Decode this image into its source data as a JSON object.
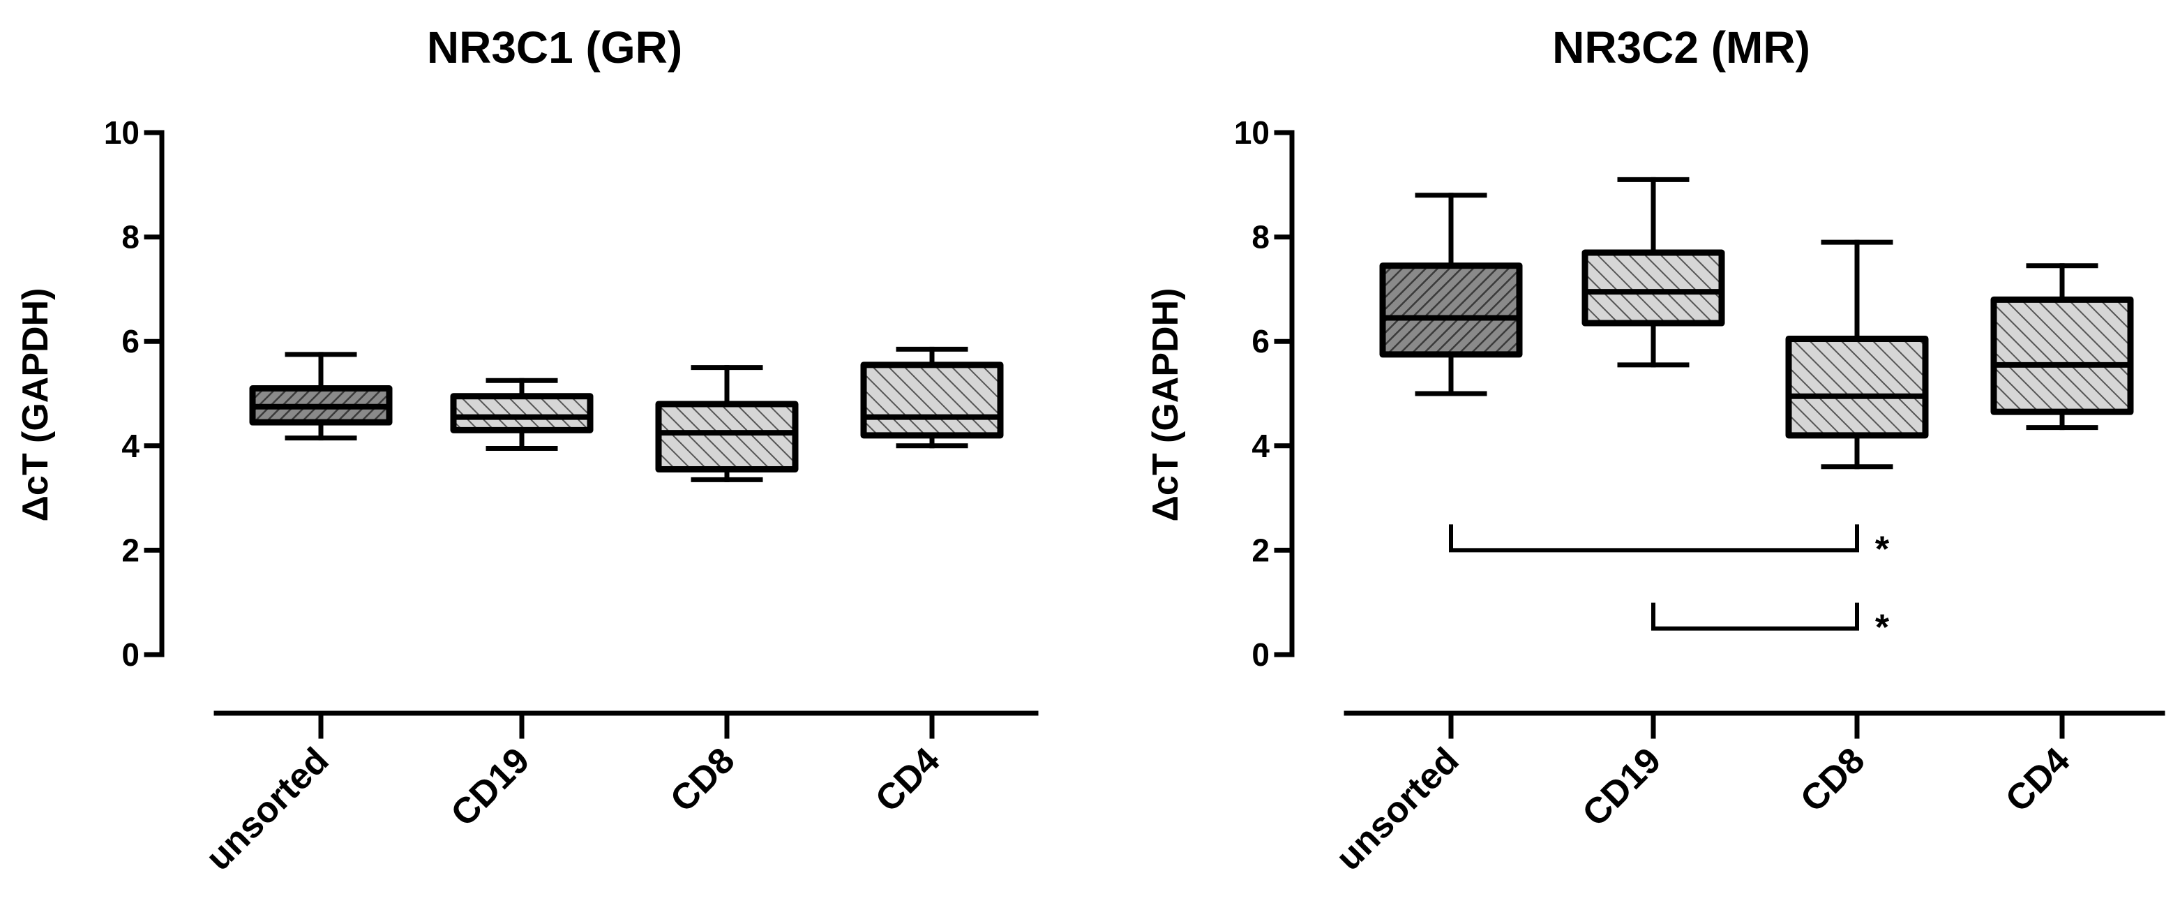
{
  "chart_data": [
    {
      "type": "box",
      "title": "NR3C1  (GR)",
      "ylabel": "ΔcT (GAPDH)",
      "xlabel": "",
      "ylim": [
        0,
        10
      ],
      "yticks": [
        0,
        2,
        4,
        6,
        8,
        10
      ],
      "categories": [
        "unsorted",
        "CD19",
        "CD8",
        "CD4"
      ],
      "boxes": [
        {
          "min": 4.15,
          "q1": 4.45,
          "median": 4.75,
          "q3": 5.1,
          "max": 5.75,
          "fill": "dense-diagonal"
        },
        {
          "min": 3.95,
          "q1": 4.3,
          "median": 4.55,
          "q3": 4.95,
          "max": 5.25,
          "fill": "light-diagonal"
        },
        {
          "min": 3.35,
          "q1": 3.55,
          "median": 4.25,
          "q3": 4.8,
          "max": 5.5,
          "fill": "light-diagonal"
        },
        {
          "min": 4.0,
          "q1": 4.2,
          "median": 4.55,
          "q3": 5.55,
          "max": 5.85,
          "fill": "light-diagonal"
        }
      ],
      "significance": []
    },
    {
      "type": "box",
      "title": "NR3C2 (MR)",
      "ylabel": "ΔcT (GAPDH)",
      "xlabel": "",
      "ylim": [
        0,
        10
      ],
      "yticks": [
        0,
        2,
        4,
        6,
        8,
        10
      ],
      "categories": [
        "unsorted",
        "CD19",
        "CD8",
        "CD4"
      ],
      "boxes": [
        {
          "min": 5.0,
          "q1": 5.75,
          "median": 6.45,
          "q3": 7.45,
          "max": 8.8,
          "fill": "dense-diagonal"
        },
        {
          "min": 5.55,
          "q1": 6.35,
          "median": 6.95,
          "q3": 7.7,
          "max": 9.1,
          "fill": "light-diagonal"
        },
        {
          "min": 3.6,
          "q1": 4.2,
          "median": 4.95,
          "q3": 6.05,
          "max": 7.9,
          "fill": "light-diagonal"
        },
        {
          "min": 4.35,
          "q1": 4.65,
          "median": 5.55,
          "q3": 6.8,
          "max": 7.45,
          "fill": "light-diagonal"
        }
      ],
      "significance": [
        {
          "from": "unsorted",
          "to": "CD8",
          "y": 2.0,
          "label": "*"
        },
        {
          "from": "CD19",
          "to": "CD8",
          "y": 0.5,
          "label": "*"
        }
      ]
    }
  ]
}
